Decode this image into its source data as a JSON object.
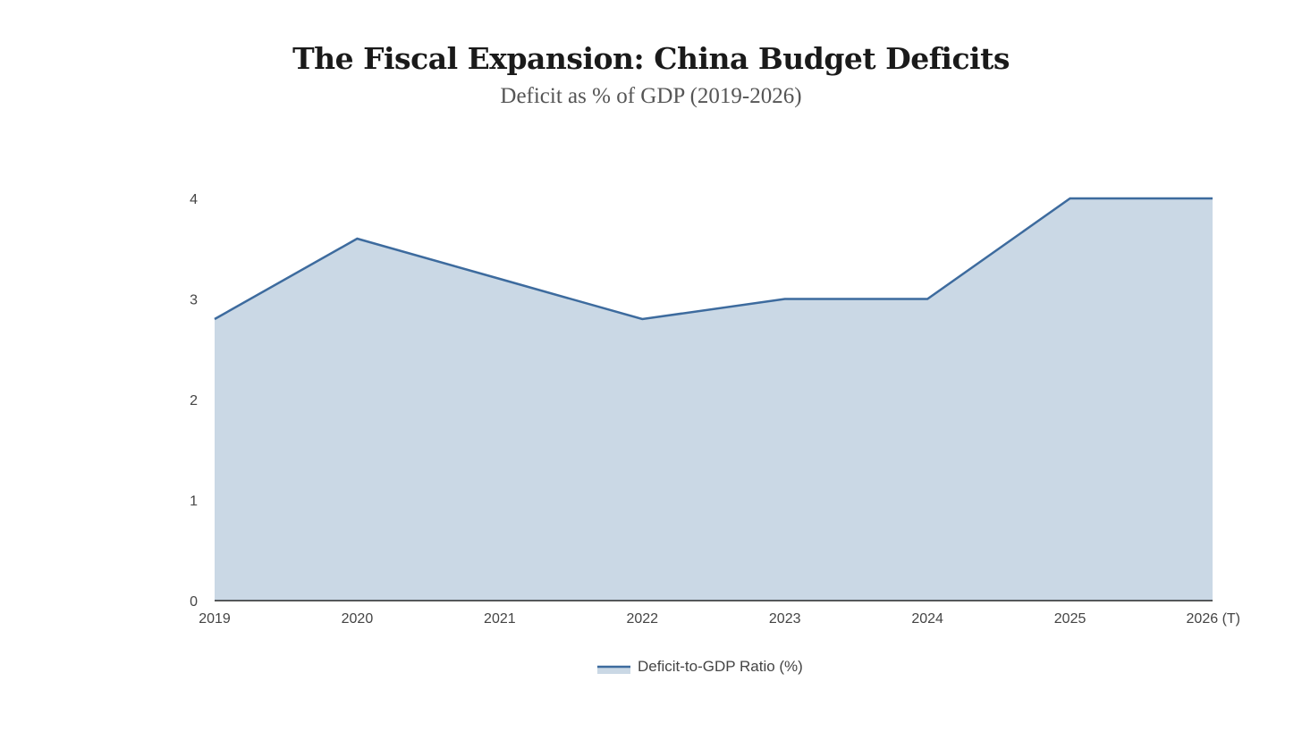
{
  "chart_data": {
    "type": "area",
    "title": "The Fiscal Expansion: China Budget Deficits",
    "subtitle": "Deficit as % of GDP (2019-2026)",
    "categories": [
      "2019",
      "2020",
      "2021",
      "2022",
      "2023",
      "2024",
      "2025",
      "2026 (T)"
    ],
    "series": [
      {
        "name": "Deficit-to-GDP Ratio (%)",
        "values": [
          2.8,
          3.6,
          3.2,
          2.8,
          3.0,
          3.0,
          4.0,
          4.0
        ]
      }
    ],
    "yticks": [
      0,
      1,
      2,
      3,
      4
    ],
    "ylim": [
      0,
      4
    ],
    "xlabel": "",
    "ylabel": "",
    "grid": false,
    "legend": "bottom-center",
    "colors": {
      "line": "#3d6b9e",
      "fill": "#cad8e5",
      "axis": "#000000"
    }
  }
}
